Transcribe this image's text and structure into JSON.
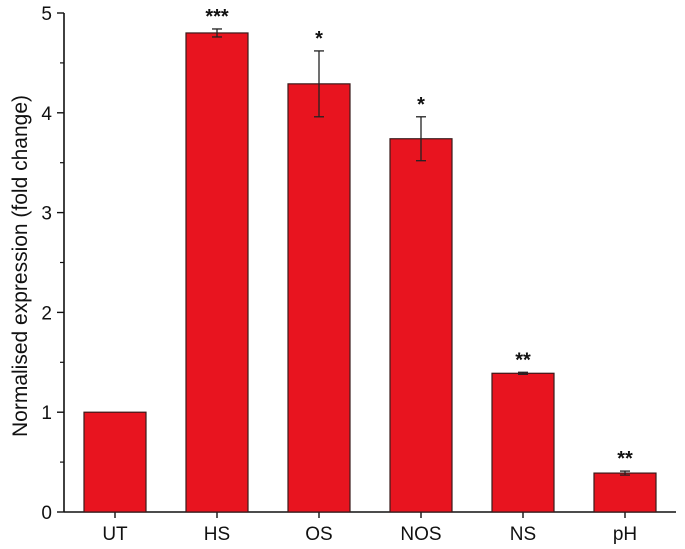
{
  "chart_data": {
    "type": "bar",
    "title": "",
    "xlabel": "",
    "ylabel": "Normalised expression (fold change)",
    "ylim": [
      0,
      5
    ],
    "yticks": [
      0,
      1,
      2,
      3,
      4,
      5
    ],
    "categories": [
      "UT",
      "HS",
      "OS",
      "NOS",
      "NS",
      "pH"
    ],
    "values": [
      1.0,
      4.8,
      4.29,
      3.74,
      1.39,
      0.39
    ],
    "errors": [
      0,
      0.04,
      0.33,
      0.22,
      0.01,
      0.02
    ],
    "significance": [
      "",
      "***",
      "*",
      "*",
      "**",
      "**"
    ],
    "bar_color": "#e8141f",
    "grid": false,
    "legend": "none"
  }
}
